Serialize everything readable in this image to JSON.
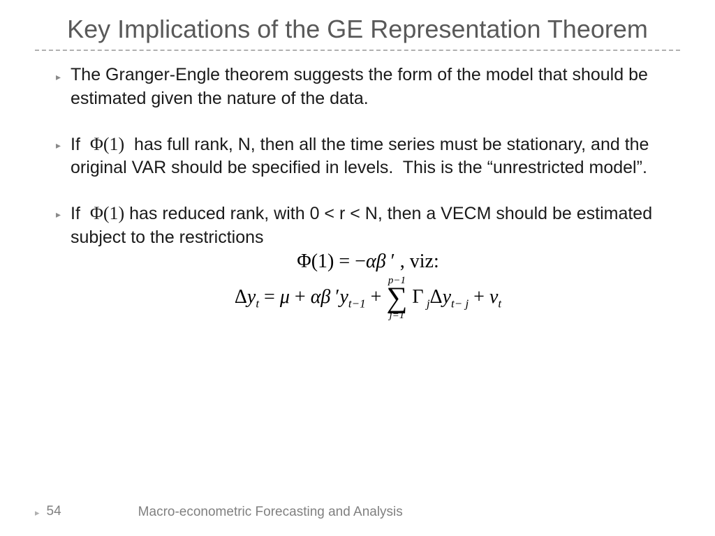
{
  "title": "Key Implications of the GE Representation Theorem",
  "bullets": [
    {
      "text_html": "The Granger-Engle theorem suggests the form of the model that should be estimated given the nature of the data."
    },
    {
      "text_html": "If &nbsp;<span class='inline-math'>Φ(1)</span>&nbsp; has full rank, N, then all the time series must be stationary, and the original VAR should be specified in levels.&nbsp; This is the “unrestricted model”."
    },
    {
      "text_html": "If &nbsp;<span class='inline-math'>Φ(1)</span>&nbsp;has reduced rank, with 0 &lt; r &lt; N, then a VECM should be estimated subject to the restrictions"
    }
  ],
  "equations": {
    "line1_html": "Φ(1) = −<span class='ital'>αβ</span>&nbsp;′ , viz:",
    "line2_left_html": "Δ<span class='ital'>y</span><span class='sub'>t</span>&nbsp;=&nbsp;<span class='ital'>μ</span> + <span class='ital'>αβ</span>&nbsp;′<span class='ital'>y</span><span class='sub'>t−1</span> + ",
    "sum_top": "p−1",
    "sum_bot": "j=1",
    "line2_right_html": "Γ<span class='sub'>&nbsp;j</span>Δ<span class='ital'>y</span><span class='sub'>t− j</span> + <span class='ital'>v</span><span class='sub'>t</span>"
  },
  "footer": {
    "page": "54",
    "title": "Macro-econometric Forecasting and Analysis"
  },
  "colors": {
    "title": "#595959",
    "text": "#1a1a1a",
    "bullet_marker": "#8a8a8a",
    "divider": "#b0b0b0",
    "footer": "#808080",
    "background": "#ffffff"
  }
}
